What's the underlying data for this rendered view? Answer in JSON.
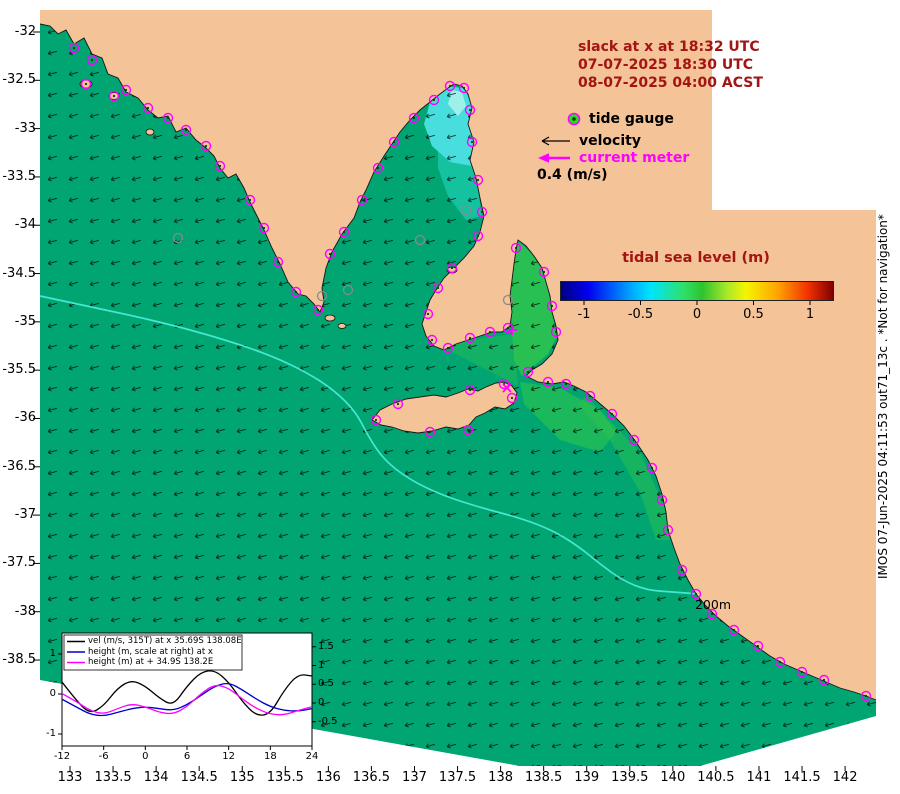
{
  "colors": {
    "land": "#f4c397",
    "ocean": "#00a572",
    "bright_gulf": "#2fc44e",
    "head_cyan": "#48dede",
    "head_core": "#a0f0ea",
    "head_teal": "#14c2a0",
    "contour": "#45e6d2",
    "magenta": "#ff00ff",
    "gray_gauge": "#8a8a8a",
    "annotation": "#a31414",
    "ink": "#000000"
  },
  "info": {
    "line1": "slack at x at 18:32 UTC",
    "line2": "07-07-2025 18:30 UTC",
    "line3": "08-07-2025 04:00 ACST"
  },
  "map_legend": {
    "tide_gauge": "tide gauge",
    "velocity": "velocity",
    "current_meter": "current meter",
    "velocity_scale": "0.4 (m/s)"
  },
  "colorbar": {
    "title": "tidal sea level (m)",
    "tick_labels": [
      "-1",
      "-0.5",
      "0",
      "0.5",
      "1"
    ],
    "tick_values": [
      -1,
      -0.5,
      0,
      0.5,
      1
    ]
  },
  "axis": {
    "lat_labels": [
      "-32",
      "-32.5",
      "-33",
      "-33.5",
      "-34",
      "-34.5",
      "-35",
      "-35.5",
      "-36",
      "-36.5",
      "-37",
      "-37.5",
      "-38",
      "-38.5"
    ],
    "lon_labels": [
      "133",
      "133.5",
      "134",
      "134.5",
      "135",
      "135.5",
      "136",
      "136.5",
      "137",
      "137.5",
      "138",
      "138.5",
      "139",
      "139.5",
      "140",
      "140.5",
      "141",
      "141.5",
      "142"
    ]
  },
  "depth_contour_label": "200m",
  "credit": "IMOS 07-Jun-2025 04:11:53 out71_13c . *Not for navigation*",
  "tide_gauges": {
    "magenta": [
      [
        74,
        48
      ],
      [
        92,
        60
      ],
      [
        126,
        90
      ],
      [
        148,
        108
      ],
      [
        168,
        118
      ],
      [
        186,
        130
      ],
      [
        206,
        146
      ],
      [
        220,
        166
      ],
      [
        250,
        200
      ],
      [
        264,
        228
      ],
      [
        278,
        262
      ],
      [
        296,
        292
      ],
      [
        318,
        310
      ],
      [
        330,
        254
      ],
      [
        344,
        232
      ],
      [
        362,
        200
      ],
      [
        378,
        168
      ],
      [
        394,
        142
      ],
      [
        414,
        118
      ],
      [
        434,
        100
      ],
      [
        450,
        86
      ],
      [
        464,
        88
      ],
      [
        470,
        110
      ],
      [
        472,
        142
      ],
      [
        478,
        180
      ],
      [
        482,
        212
      ],
      [
        478,
        236
      ],
      [
        452,
        268
      ],
      [
        438,
        288
      ],
      [
        428,
        314
      ],
      [
        432,
        340
      ],
      [
        448,
        348
      ],
      [
        470,
        338
      ],
      [
        490,
        332
      ],
      [
        508,
        328
      ],
      [
        516,
        248
      ],
      [
        544,
        272
      ],
      [
        552,
        306
      ],
      [
        556,
        332
      ],
      [
        528,
        372
      ],
      [
        548,
        382
      ],
      [
        566,
        384
      ],
      [
        590,
        396
      ],
      [
        612,
        414
      ],
      [
        634,
        440
      ],
      [
        652,
        468
      ],
      [
        662,
        500
      ],
      [
        668,
        530
      ],
      [
        682,
        570
      ],
      [
        696,
        594
      ],
      [
        712,
        614
      ],
      [
        734,
        630
      ],
      [
        758,
        646
      ],
      [
        780,
        662
      ],
      [
        802,
        672
      ],
      [
        824,
        680
      ],
      [
        866,
        696
      ],
      [
        376,
        420
      ],
      [
        398,
        404
      ],
      [
        470,
        390
      ],
      [
        504,
        384
      ],
      [
        512,
        398
      ],
      [
        468,
        430
      ],
      [
        430,
        432
      ],
      [
        86,
        84
      ],
      [
        114,
        96
      ]
    ],
    "gray": [
      [
        178,
        238
      ],
      [
        322,
        296
      ],
      [
        348,
        290
      ],
      [
        420,
        240
      ],
      [
        466,
        210
      ],
      [
        508,
        300
      ]
    ]
  },
  "markers": {
    "x_marker": [
      507,
      388
    ],
    "plus_marker": [
      512,
      330
    ]
  },
  "chart_data": {
    "type": "line",
    "x": [
      -12,
      -10,
      -8,
      -6,
      -4,
      -2,
      0,
      2,
      4,
      6,
      8,
      10,
      12,
      14,
      16,
      18,
      20,
      22,
      24
    ],
    "x_tick_labels": [
      "-12",
      "-6",
      "0",
      "6",
      "12",
      "18",
      "24"
    ],
    "left_axis": {
      "tick_labels": [
        "1",
        "0",
        "-1"
      ],
      "range": [
        -1.4,
        1.55
      ]
    },
    "right_axis": {
      "tick_labels": [
        "1.5",
        "1",
        "0.5",
        "0",
        "-0.5"
      ],
      "range": [
        -1.15,
        3.0
      ]
    },
    "series": [
      {
        "name": "vel (m/s, 315T) at x 35.69S 138.08E",
        "color": "#000000",
        "axis": "left",
        "values": [
          0.3,
          -0.15,
          -0.5,
          -0.3,
          0.15,
          0.35,
          0.2,
          -0.1,
          -0.3,
          0.2,
          0.55,
          0.6,
          0.3,
          -0.2,
          -0.55,
          -0.5,
          0.1,
          0.5,
          0.45
        ]
      },
      {
        "name": "height (m, scale at right) at x",
        "color": "#0000cc",
        "axis": "right",
        "values": [
          0.1,
          -0.1,
          -0.3,
          -0.35,
          -0.25,
          -0.15,
          -0.1,
          -0.15,
          -0.2,
          -0.05,
          0.2,
          0.45,
          0.55,
          0.35,
          0.1,
          -0.1,
          -0.2,
          -0.22,
          -0.15
        ]
      },
      {
        "name": "height (m) at + 34.9S 138.2E",
        "color": "#ff00ff",
        "axis": "right",
        "values": [
          0.25,
          0.05,
          -0.2,
          -0.3,
          -0.15,
          -0.02,
          -0.1,
          -0.25,
          -0.3,
          -0.1,
          0.25,
          0.5,
          0.4,
          0.1,
          -0.15,
          -0.3,
          -0.32,
          -0.2,
          -0.1
        ]
      }
    ]
  }
}
